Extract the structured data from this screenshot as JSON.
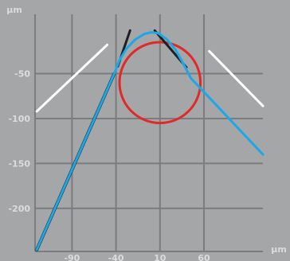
{
  "chart_data": {
    "type": "line",
    "x_unit_label": "μm",
    "y_unit_label": "μm",
    "x_ticks": [
      -90,
      -40,
      10,
      60
    ],
    "y_ticks": [
      -50,
      -100,
      -150,
      -200
    ],
    "xlim": [
      -132,
      127
    ],
    "ylim": [
      -248,
      16
    ],
    "grid": true,
    "colors": {
      "background": "#a5a6a8",
      "grid": "#7b7c7e",
      "tick_text": "#dcdcde",
      "profile": "#1ba8e8",
      "circle": "#e02a2a",
      "tangent_dark": "#1f1f1f",
      "tangent_light": "#ffffff"
    },
    "series": [
      {
        "values": [
          [
            -130,
            -246
          ],
          [
            -42,
            -50
          ],
          [
            -36,
            -35
          ],
          [
            -28,
            -22
          ],
          [
            -18,
            -12
          ],
          [
            -8,
            -6
          ],
          [
            0,
            -4
          ],
          [
            8,
            -5
          ],
          [
            18,
            -12
          ],
          [
            28,
            -24
          ],
          [
            36,
            -38
          ],
          [
            45,
            -55
          ],
          [
            127,
            -140
          ]
        ]
      },
      {
        "values": [
          [
            -130,
            -246
          ],
          [
            -42,
            -50
          ]
        ]
      }
    ],
    "circles": [
      {
        "center": [
          10,
          -60
        ],
        "radius": 46
      }
    ],
    "tangent_lines": [
      {
        "from": [
          -38,
          -42
        ],
        "to": [
          -24,
          -2
        ]
      },
      {
        "from": [
          4,
          -2
        ],
        "to": [
          40,
          -43
        ]
      },
      {
        "from": [
          -130,
          -92
        ],
        "to": [
          -50,
          -18
        ]
      },
      {
        "from": [
          66,
          -25
        ],
        "to": [
          127,
          -86
        ]
      }
    ]
  }
}
